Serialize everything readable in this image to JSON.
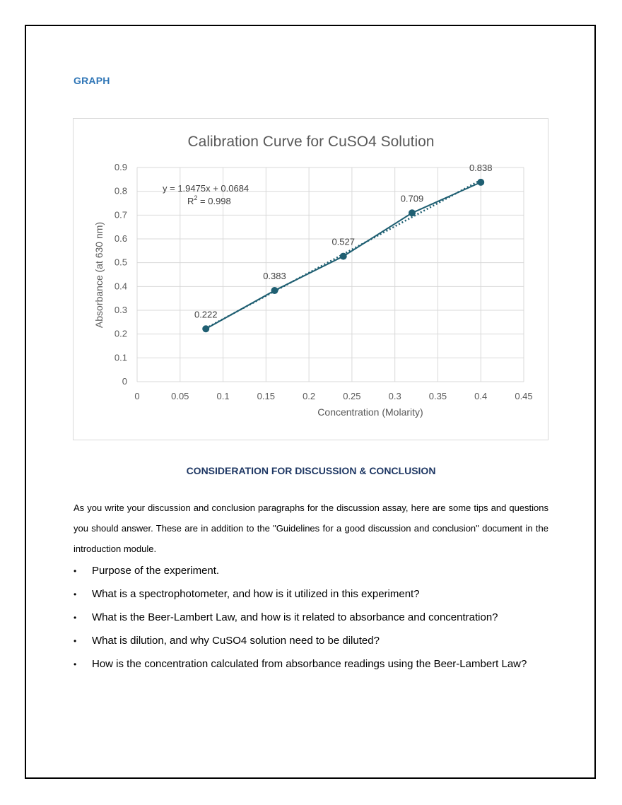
{
  "heading": "GRAPH",
  "chart_data": {
    "type": "scatter",
    "title": "Calibration Curve for CuSO4 Solution",
    "xlabel": "Concentration (Molarity)",
    "ylabel": "Absorbance (at 630 nm)",
    "xlim": [
      0,
      0.45
    ],
    "ylim": [
      0,
      0.9
    ],
    "x_ticks": [
      "0",
      "0.05",
      "0.1",
      "0.15",
      "0.2",
      "0.25",
      "0.3",
      "0.35",
      "0.4",
      "0.45"
    ],
    "y_ticks": [
      "0",
      "0.1",
      "0.2",
      "0.3",
      "0.4",
      "0.5",
      "0.6",
      "0.7",
      "0.8",
      "0.9"
    ],
    "grid": true,
    "series": [
      {
        "x": [
          0.08,
          0.16,
          0.24,
          0.32,
          0.4
        ],
        "y": [
          0.222,
          0.383,
          0.527,
          0.709,
          0.838
        ],
        "labels": [
          "0.222",
          "0.383",
          "0.527",
          "0.709",
          "0.838"
        ],
        "color": "#1f5f72"
      }
    ],
    "trendline": {
      "slope": 1.9475,
      "intercept": 0.0684,
      "style": "dotted",
      "equation": "y = 1.9475x + 0.0684",
      "r2_prefix": "R",
      "r2_superscript": "2",
      "r2_value": " = 0.998"
    }
  },
  "discussion": {
    "heading": "CONSIDERATION FOR DISCUSSION & CONCLUSION",
    "intro": "As you write your discussion and conclusion paragraphs for the discussion assay, here are some tips and questions you should answer. These are in addition to the \"Guidelines for a good discussion and conclusion\" document in the introduction module.",
    "bullet": "•",
    "items": [
      "Purpose of the experiment.",
      "What is a spectrophotometer, and how is it utilized in this experiment?",
      "What is the Beer-Lambert Law, and how is it related to absorbance and concentration?",
      "What is dilution, and why CuSO4 solution need to be diluted?",
      "How is the concentration calculated from absorbance readings using the Beer-Lambert Law?"
    ]
  }
}
